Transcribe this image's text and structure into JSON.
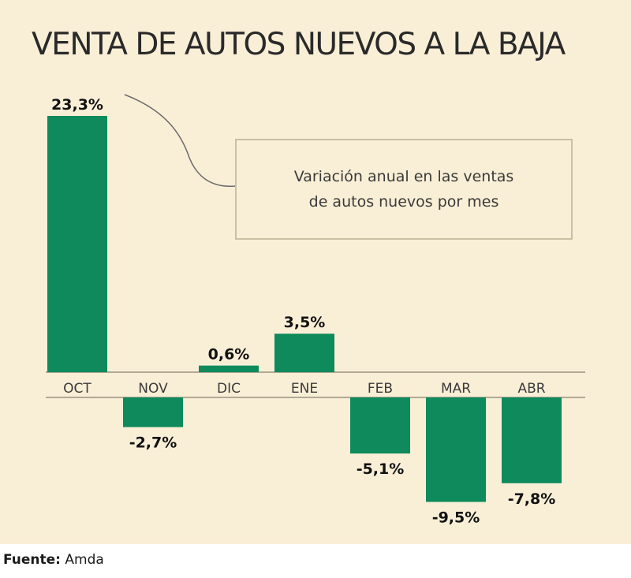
{
  "chart_data": {
    "type": "bar",
    "title": "VENTA DE AUTOS NUEVOS A LA BAJA",
    "legend_note": [
      "Variación anual en las ventas",
      "de autos nuevos por mes"
    ],
    "categories": [
      "OCT",
      "NOV",
      "DIC",
      "ENE",
      "FEB",
      "MAR",
      "ABR"
    ],
    "values": [
      23.3,
      -2.7,
      0.6,
      3.5,
      -5.1,
      -9.5,
      -7.8
    ],
    "value_labels": [
      "23,3%",
      "-2,7%",
      "0,6%",
      "3,5%",
      "-5,1%",
      "-9,5%",
      "-7,8%"
    ],
    "unit": "%",
    "bar_color": "#0e8a5c",
    "ylim": [
      -9.5,
      23.3
    ],
    "grid": false
  },
  "source": {
    "label": "Fuente:",
    "value": "Amda"
  }
}
